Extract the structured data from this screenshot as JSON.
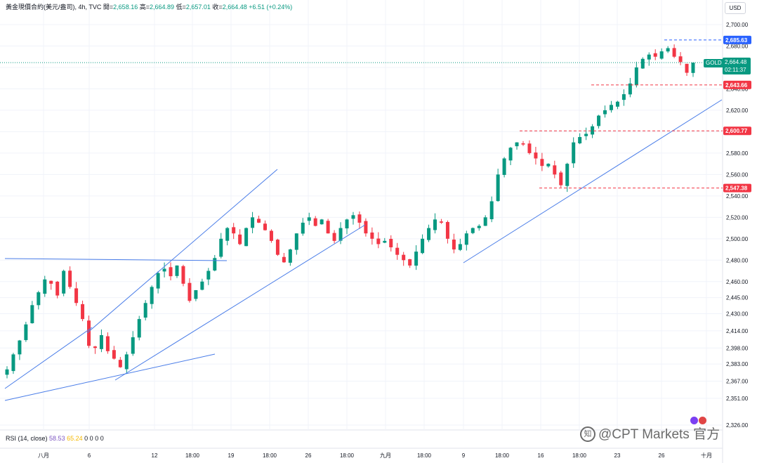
{
  "header": {
    "symbol": "黃金現價合約(美元/盎司)",
    "interval": "4h",
    "source": "TVC",
    "open_label": "開",
    "open": "2,658.16",
    "high_label": "高",
    "high": "2,664.89",
    "low_label": "低",
    "low": "2,657.01",
    "close_label": "收",
    "close": "2,664.48",
    "change": "+6.51 (+0.24%)"
  },
  "currency_button": "USD",
  "ticker_tag": "GOLD",
  "last_price": "2,664.48",
  "countdown": "02:11:37",
  "rsi": {
    "label": "RSI (14, close)",
    "value1": "58.53",
    "value2": "65.24",
    "extras": [
      "0",
      "0",
      "0",
      "0"
    ]
  },
  "watermark": "@CPT Markets 官方",
  "colors": {
    "up": "#089981",
    "down": "#f23645",
    "trendline": "#4a7de8",
    "red_level": "#f23645",
    "blue_level": "#2962ff"
  },
  "chart_data": {
    "type": "candlestick",
    "timeframe": "4h",
    "x_tick_labels": [
      "八月",
      "6",
      "12",
      "18:00",
      "19",
      "18:00",
      "26",
      "18:00",
      "九月",
      "18:00",
      "9",
      "18:00",
      "16",
      "18:00",
      "23",
      "26",
      "十月"
    ],
    "y_ticks": [
      2326,
      2351,
      2367,
      2383,
      2398,
      2414,
      2430,
      2445,
      2460,
      2480,
      2500,
      2520,
      2540,
      2560,
      2580,
      2600,
      2620,
      2640,
      2660,
      2680,
      2700
    ],
    "y_tick_labels": [
      "2,326.00",
      "2,351.00",
      "2,367.00",
      "2,383.00",
      "2,398.00",
      "2,414.00",
      "2,430.00",
      "2,445.00",
      "2,460.00",
      "2,480.00",
      "2,500.00",
      "2,520.00",
      "2,540.00",
      "2,560.00",
      "2,580.00",
      "2,600.00",
      "2,620.00",
      "2,640.00",
      "2,660.00",
      "2,680.00",
      "2,700.00"
    ],
    "last_price": 2664.48,
    "price_levels": [
      {
        "value": 2685.63,
        "label": "2,685.63",
        "color": "blue"
      },
      {
        "value": 2643.66,
        "label": "2,643.66",
        "color": "red"
      },
      {
        "value": 2600.77,
        "label": "2,600.77",
        "color": "red"
      },
      {
        "value": 2547.38,
        "label": "2,547.38",
        "color": "red"
      }
    ],
    "close_path": [
      2378,
      2392,
      2405,
      2420,
      2438,
      2450,
      2462,
      2458,
      2447,
      2470,
      2455,
      2440,
      2425,
      2400,
      2398,
      2410,
      2395,
      2388,
      2380,
      2392,
      2408,
      2425,
      2440,
      2455,
      2468,
      2472,
      2465,
      2475,
      2458,
      2442,
      2452,
      2460,
      2470,
      2482,
      2500,
      2510,
      2505,
      2495,
      2510,
      2520,
      2515,
      2508,
      2498,
      2485,
      2478,
      2490,
      2505,
      2515,
      2520,
      2512,
      2518,
      2505,
      2498,
      2510,
      2518,
      2522,
      2515,
      2505,
      2500,
      2495,
      2498,
      2492,
      2485,
      2480,
      2475,
      2488,
      2500,
      2510,
      2518,
      2515,
      2500,
      2490,
      2495,
      2505,
      2510,
      2512,
      2520,
      2535,
      2560,
      2575,
      2585,
      2590,
      2588,
      2580,
      2575,
      2568,
      2570,
      2560,
      2550,
      2570,
      2590,
      2595,
      2598,
      2605,
      2615,
      2620,
      2625,
      2628,
      2635,
      2645,
      2660,
      2668,
      2672,
      2670,
      2675,
      2678,
      2670,
      2665,
      2655,
      2664.48
    ]
  }
}
